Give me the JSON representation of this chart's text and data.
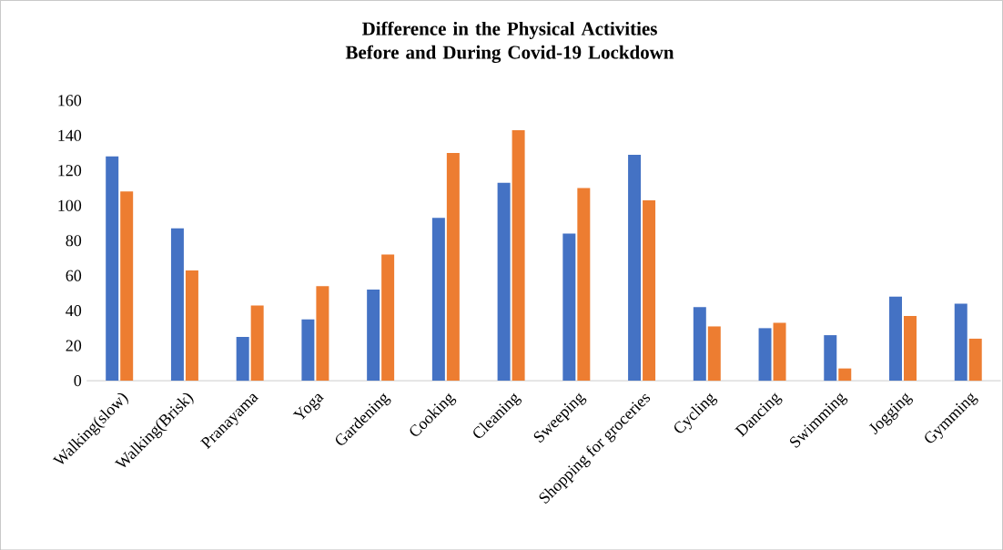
{
  "chart_data": {
    "type": "bar",
    "title": "Difference in the Physical Activities Before and During Covid-19 Lockdown",
    "categories": [
      "Walking(slow)",
      "Walking(Brisk)",
      "Pranayama",
      "Yoga",
      "Gardening",
      "Cooking",
      "Cleaning",
      "Sweeping",
      "Shopping for groceries",
      "Cycling",
      "Dancing",
      "Swimming",
      "Jogging",
      "Gymming"
    ],
    "series": [
      {
        "color": "#4472c4",
        "values": [
          128,
          87,
          25,
          35,
          52,
          93,
          113,
          84,
          129,
          42,
          30,
          26,
          48,
          44
        ]
      },
      {
        "color": "#ed7d31",
        "values": [
          108,
          63,
          43,
          54,
          72,
          130,
          143,
          110,
          103,
          31,
          33,
          7,
          37,
          24
        ]
      }
    ],
    "ylim": [
      0,
      160
    ],
    "yticks": [
      0,
      20,
      40,
      60,
      80,
      100,
      120,
      140,
      160
    ]
  }
}
